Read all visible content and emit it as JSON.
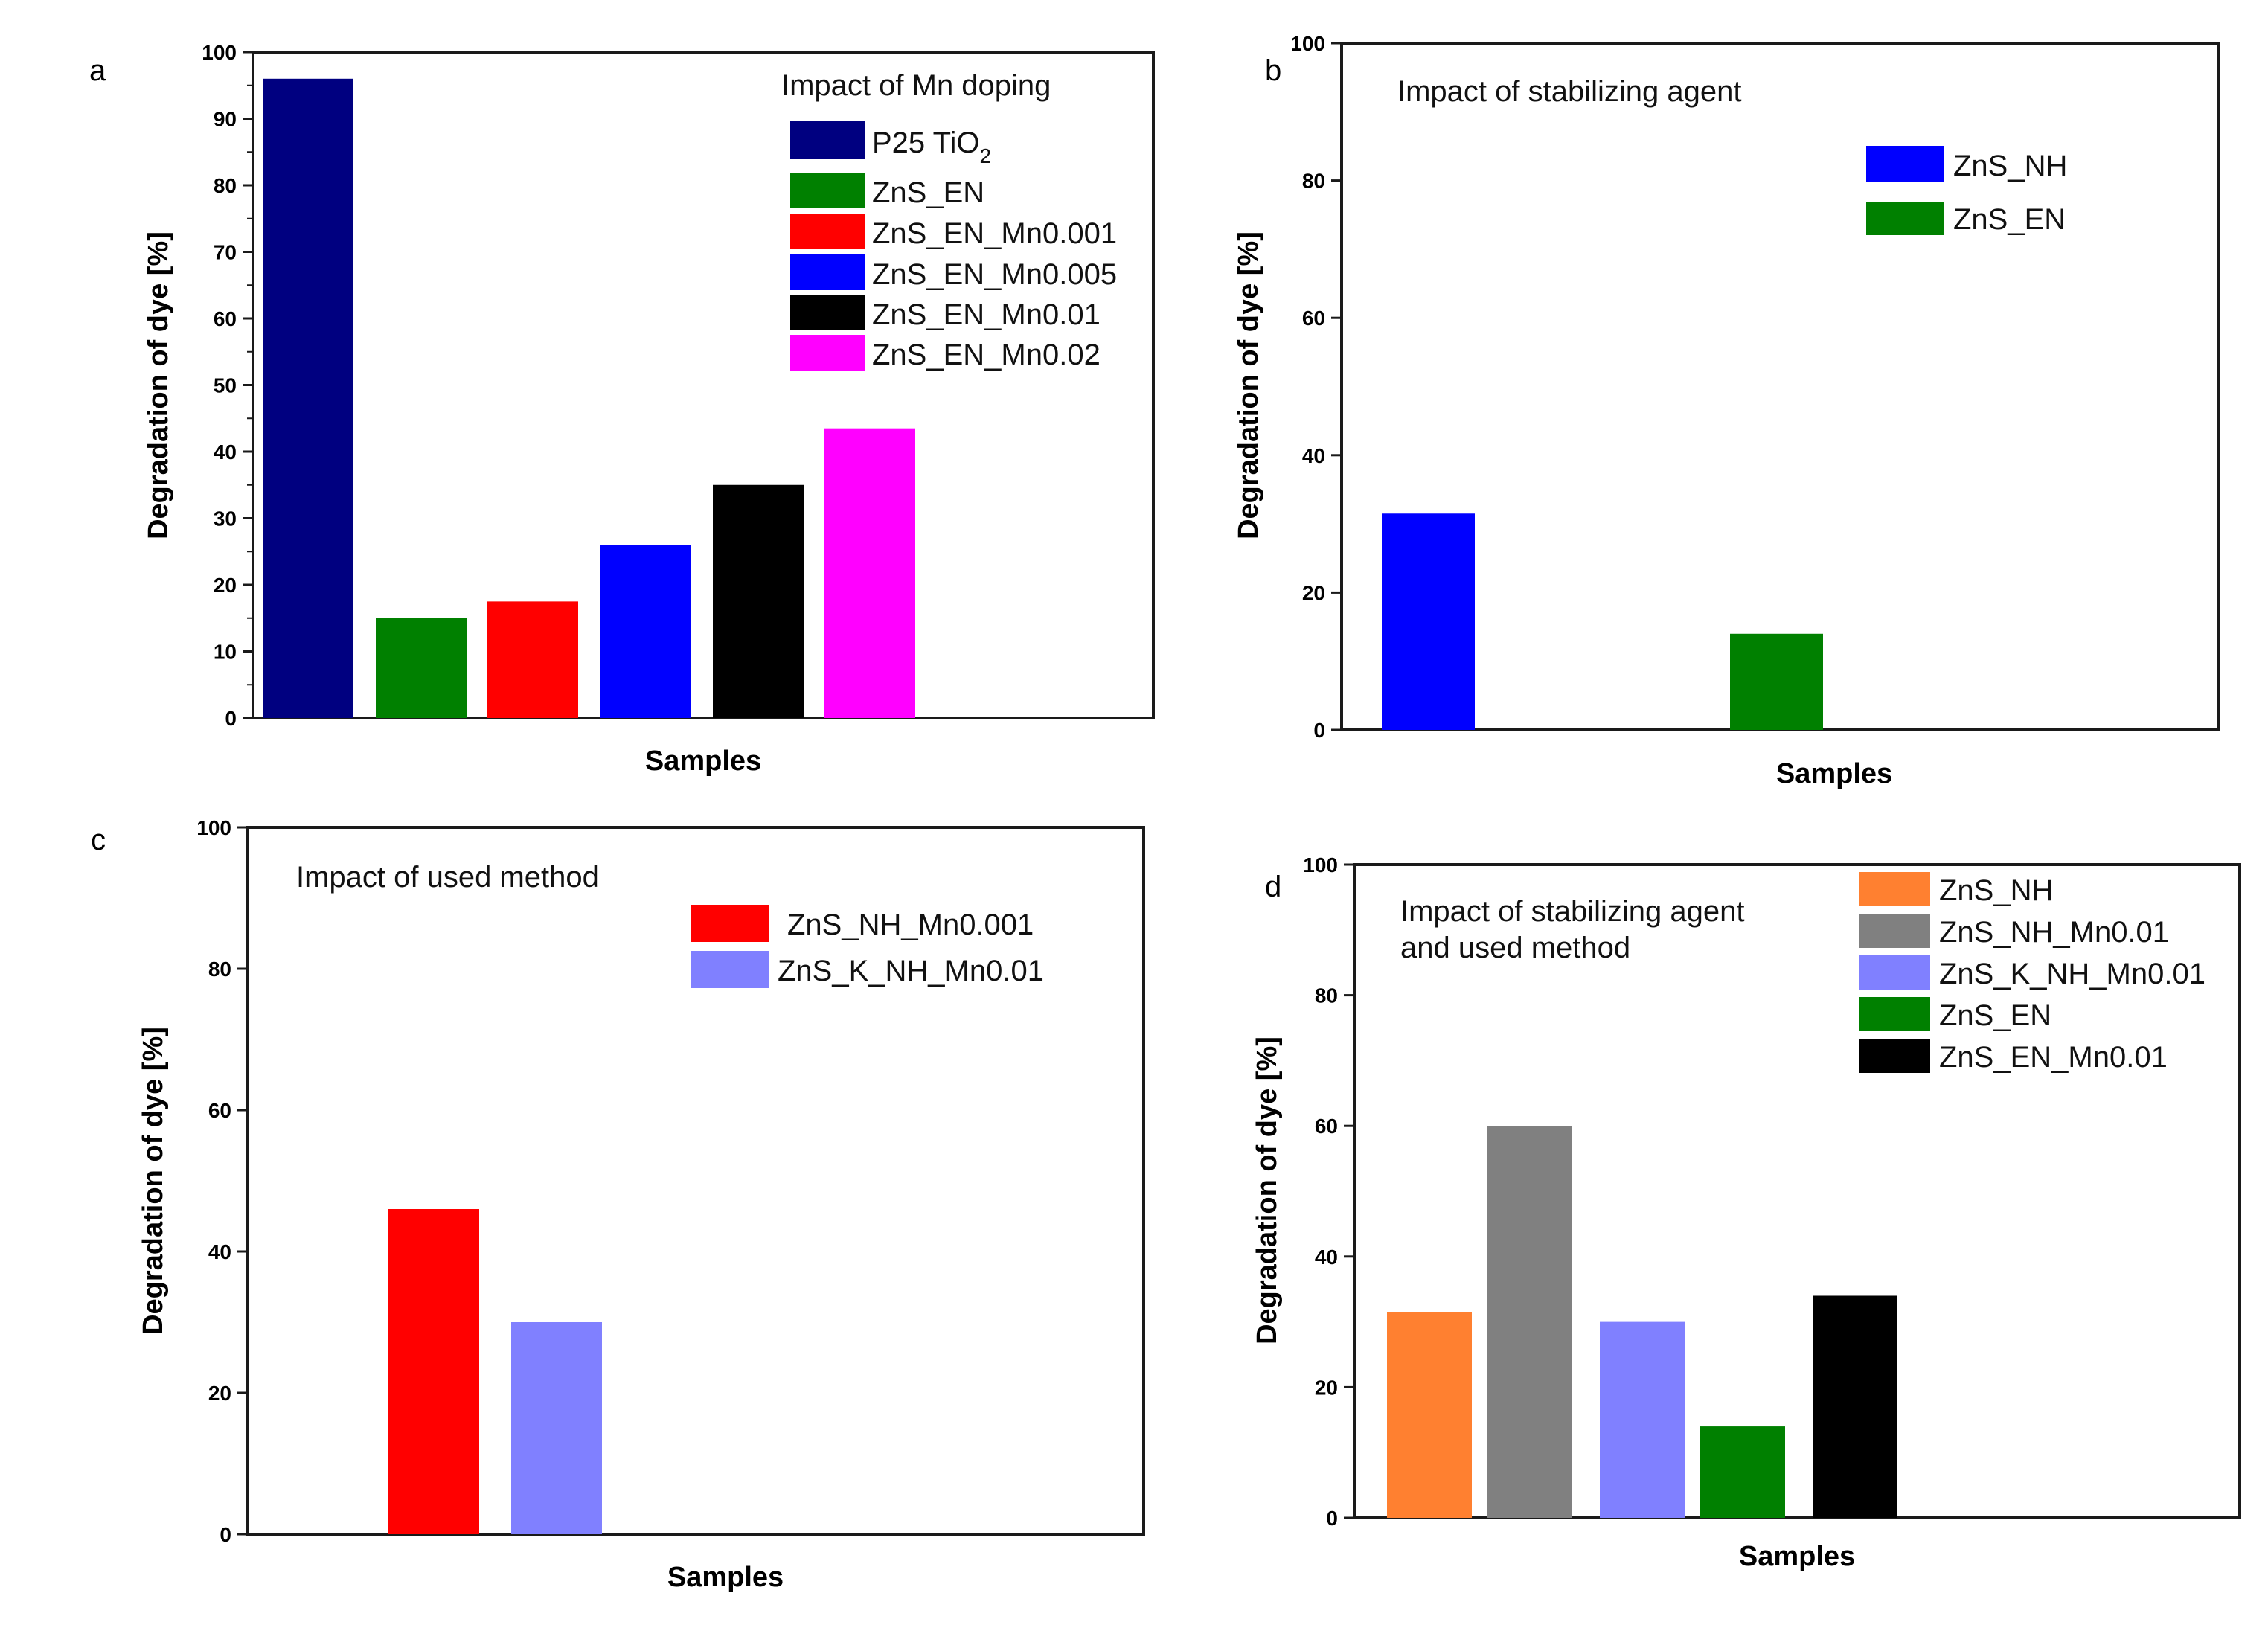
{
  "chart_data": [
    {
      "panel": "a",
      "type": "bar",
      "title": "Impact of Mn doping",
      "xlabel": "Samples",
      "ylabel": "Degradation of dye [%]",
      "ylim": [
        0,
        100
      ],
      "yticks": [
        0,
        10,
        20,
        30,
        40,
        50,
        60,
        70,
        80,
        90,
        100
      ],
      "legend_position": "top-right",
      "series": [
        {
          "name": "P25 TiO",
          "subscript": "2",
          "value": 96,
          "color": "#000080"
        },
        {
          "name": "ZnS_EN",
          "value": 15,
          "color": "#008000"
        },
        {
          "name": "ZnS_EN_Mn0.001",
          "value": 17.5,
          "color": "#ff0000"
        },
        {
          "name": "ZnS_EN_Mn0.005",
          "value": 26,
          "color": "#0000ff"
        },
        {
          "name": "ZnS_EN_Mn0.01",
          "value": 35,
          "color": "#000000"
        },
        {
          "name": "ZnS_EN_Mn0.02",
          "value": 43.5,
          "color": "#ff00ff"
        }
      ]
    },
    {
      "panel": "b",
      "type": "bar",
      "title": "Impact of stabilizing agent",
      "xlabel": "Samples",
      "ylabel": "Degradation of dye [%]",
      "ylim": [
        0,
        100
      ],
      "yticks": [
        0,
        20,
        40,
        60,
        80,
        100
      ],
      "legend_position": "top-right",
      "series": [
        {
          "name": "ZnS_NH",
          "value": 31.5,
          "color": "#0000ff"
        },
        {
          "name": "ZnS_EN",
          "value": 14,
          "color": "#008000"
        }
      ]
    },
    {
      "panel": "c",
      "type": "bar",
      "title": "Impact of used method",
      "xlabel": "Samples",
      "ylabel": "Degradation of dye [%]",
      "ylim": [
        0,
        100
      ],
      "yticks": [
        0,
        20,
        40,
        60,
        80,
        100
      ],
      "legend_position": "top-right",
      "series": [
        {
          "name": "ZnS_NH_Mn0.001",
          "value": 46,
          "color": "#ff0000"
        },
        {
          "name": "ZnS_K_NH_Mn0.01",
          "value": 30,
          "color": "#8080ff"
        }
      ]
    },
    {
      "panel": "d",
      "type": "bar",
      "title": "Impact of stabilizing agent",
      "title_line2": "and used method",
      "xlabel": "Samples",
      "ylabel": "Degradation of dye [%]",
      "ylim": [
        0,
        100
      ],
      "yticks": [
        0,
        20,
        40,
        60,
        80,
        100
      ],
      "legend_position": "top-right",
      "series": [
        {
          "name": "ZnS_NH",
          "value": 31.5,
          "color": "#ff8030"
        },
        {
          "name": "ZnS_NH_Mn0.01",
          "value": 60,
          "color": "#808080"
        },
        {
          "name": "ZnS_K_NH_Mn0.01",
          "value": 30,
          "color": "#8080ff"
        },
        {
          "name": "ZnS_EN",
          "value": 14,
          "color": "#008000"
        },
        {
          "name": "ZnS_EN_Mn0.01",
          "value": 34,
          "color": "#000000"
        }
      ]
    }
  ]
}
